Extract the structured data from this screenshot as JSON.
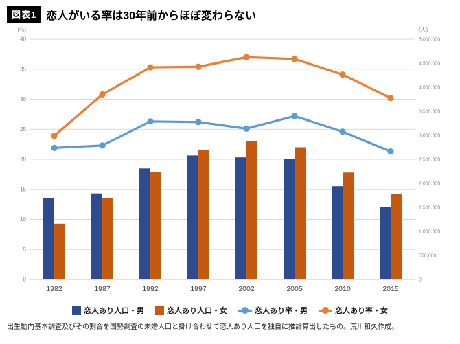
{
  "header": {
    "tag": "図表1",
    "title": "恋人がいる率は30年前からほぼ変わらない"
  },
  "footer": {
    "note": "出生動向基本調査及びその割合を国勢調査の未婚人口と掛け合わせて恋人あり人口を独自に推計算出したもの。荒川和久作成。"
  },
  "chart_data": {
    "type": "bar+line",
    "title": "恋人がいる率は30年前からほぼ変わらない",
    "categories": [
      "1982",
      "1987",
      "1992",
      "1997",
      "2002",
      "2005",
      "2010",
      "2015"
    ],
    "left_axis": {
      "label": "(%)",
      "min": 0,
      "max": 40,
      "step": 5
    },
    "right_axis": {
      "label": "(人)",
      "min": 0,
      "max": 5000000,
      "step": 500000
    },
    "grid": true,
    "legend_position": "bottom",
    "bar_series": [
      {
        "name": "恋人あり人口・男",
        "color": "#2e4b8f",
        "axis": "right",
        "values": [
          1690000,
          1790000,
          2310000,
          2580000,
          2540000,
          2510000,
          1940000,
          1500000
        ]
      },
      {
        "name": "恋人あり人口・女",
        "color": "#c5590f",
        "axis": "right",
        "values": [
          1160000,
          1700000,
          2240000,
          2690000,
          2875000,
          2750000,
          2225000,
          1775000
        ]
      }
    ],
    "line_series": [
      {
        "name": "恋人あり率・男",
        "color": "#5b9bd5",
        "axis": "left",
        "values": [
          21.9,
          22.3,
          26.3,
          26.2,
          25.1,
          27.2,
          24.6,
          21.3
        ]
      },
      {
        "name": "恋人あり率・女",
        "color": "#ed7d31",
        "axis": "left",
        "values": [
          23.9,
          30.8,
          35.3,
          35.4,
          37.0,
          36.7,
          34.1,
          30.2
        ]
      }
    ]
  }
}
